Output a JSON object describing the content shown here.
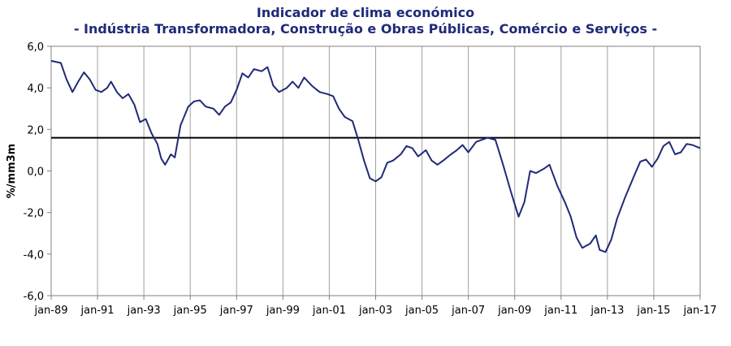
{
  "chart_data": {
    "type": "line",
    "title": "Indicador de clima económico",
    "subtitle": "- Indústria Transformadora, Construção e Obras Públicas, Comércio e Serviços -",
    "xlabel": "",
    "ylabel": "%/mm3m",
    "x_tick_labels": [
      "jan-89",
      "jan-91",
      "jan-93",
      "jan-95",
      "jan-97",
      "jan-99",
      "jan-01",
      "jan-03",
      "jan-05",
      "jan-07",
      "jan-09",
      "jan-11",
      "jan-13",
      "jan-15",
      "jan-17"
    ],
    "y_tick_labels": [
      "6,0",
      "4,0",
      "2,0",
      "0,0",
      "-2,0",
      "-4,0",
      "-6,0"
    ],
    "ylim": [
      -6,
      6
    ],
    "xlim": [
      "1989-01",
      "2017-01"
    ],
    "grid": "vertical",
    "reference_line": 1.6,
    "series_color": "#1f2a78",
    "series": [
      {
        "points": [
          [
            "1989-01",
            5.3
          ],
          [
            "1989-06",
            5.2
          ],
          [
            "1989-09",
            4.4
          ],
          [
            "1989-12",
            3.8
          ],
          [
            "1990-03",
            4.3
          ],
          [
            "1990-06",
            4.75
          ],
          [
            "1990-09",
            4.4
          ],
          [
            "1990-12",
            3.9
          ],
          [
            "1991-03",
            3.8
          ],
          [
            "1991-06",
            4.0
          ],
          [
            "1991-08",
            4.3
          ],
          [
            "1991-11",
            3.8
          ],
          [
            "1992-02",
            3.5
          ],
          [
            "1992-05",
            3.7
          ],
          [
            "1992-08",
            3.2
          ],
          [
            "1992-11",
            2.35
          ],
          [
            "1993-02",
            2.5
          ],
          [
            "1993-05",
            1.8
          ],
          [
            "1993-08",
            1.3
          ],
          [
            "1993-10",
            0.6
          ],
          [
            "1993-12",
            0.3
          ],
          [
            "1994-03",
            0.8
          ],
          [
            "1994-05",
            0.65
          ],
          [
            "1994-08",
            2.2
          ],
          [
            "1994-12",
            3.1
          ],
          [
            "1995-03",
            3.35
          ],
          [
            "1995-06",
            3.4
          ],
          [
            "1995-09",
            3.1
          ],
          [
            "1996-01",
            3.0
          ],
          [
            "1996-04",
            2.7
          ],
          [
            "1996-07",
            3.1
          ],
          [
            "1996-10",
            3.3
          ],
          [
            "1997-01",
            3.9
          ],
          [
            "1997-04",
            4.7
          ],
          [
            "1997-07",
            4.5
          ],
          [
            "1997-10",
            4.9
          ],
          [
            "1998-02",
            4.8
          ],
          [
            "1998-05",
            5.0
          ],
          [
            "1998-08",
            4.1
          ],
          [
            "1998-11",
            3.8
          ],
          [
            "1999-03",
            4.0
          ],
          [
            "1999-06",
            4.3
          ],
          [
            "1999-09",
            4.0
          ],
          [
            "1999-12",
            4.5
          ],
          [
            "2000-04",
            4.1
          ],
          [
            "2000-08",
            3.8
          ],
          [
            "2000-12",
            3.7
          ],
          [
            "2001-03",
            3.6
          ],
          [
            "2001-06",
            3.0
          ],
          [
            "2001-09",
            2.6
          ],
          [
            "2002-01",
            2.4
          ],
          [
            "2002-04",
            1.5
          ],
          [
            "2002-07",
            0.5
          ],
          [
            "2002-10",
            -0.35
          ],
          [
            "2003-01",
            -0.5
          ],
          [
            "2003-04",
            -0.3
          ],
          [
            "2003-07",
            0.4
          ],
          [
            "2003-10",
            0.5
          ],
          [
            "2004-02",
            0.8
          ],
          [
            "2004-05",
            1.2
          ],
          [
            "2004-08",
            1.1
          ],
          [
            "2004-11",
            0.7
          ],
          [
            "2005-03",
            1.0
          ],
          [
            "2005-06",
            0.5
          ],
          [
            "2005-09",
            0.3
          ],
          [
            "2005-12",
            0.5
          ],
          [
            "2006-04",
            0.8
          ],
          [
            "2006-07",
            1.0
          ],
          [
            "2006-10",
            1.25
          ],
          [
            "2007-01",
            0.9
          ],
          [
            "2007-05",
            1.4
          ],
          [
            "2007-08",
            1.5
          ],
          [
            "2007-11",
            1.6
          ],
          [
            "2008-03",
            1.5
          ],
          [
            "2008-07",
            0.3
          ],
          [
            "2008-11",
            -1.0
          ],
          [
            "2009-03",
            -2.2
          ],
          [
            "2009-06",
            -1.5
          ],
          [
            "2009-09",
            0.0
          ],
          [
            "2009-12",
            -0.1
          ],
          [
            "2010-04",
            0.1
          ],
          [
            "2010-07",
            0.3
          ],
          [
            "2010-11",
            -0.7
          ],
          [
            "2011-03",
            -1.5
          ],
          [
            "2011-06",
            -2.2
          ],
          [
            "2011-09",
            -3.2
          ],
          [
            "2011-12",
            -3.7
          ],
          [
            "2012-04",
            -3.5
          ],
          [
            "2012-07",
            -3.1
          ],
          [
            "2012-09",
            -3.8
          ],
          [
            "2012-12",
            -3.9
          ],
          [
            "2013-03",
            -3.3
          ],
          [
            "2013-06",
            -2.3
          ],
          [
            "2013-10",
            -1.3
          ],
          [
            "2014-03",
            -0.2
          ],
          [
            "2014-06",
            0.45
          ],
          [
            "2014-09",
            0.55
          ],
          [
            "2014-12",
            0.2
          ],
          [
            "2015-03",
            0.6
          ],
          [
            "2015-06",
            1.2
          ],
          [
            "2015-09",
            1.4
          ],
          [
            "2015-12",
            0.8
          ],
          [
            "2016-03",
            0.9
          ],
          [
            "2016-06",
            1.3
          ],
          [
            "2016-09",
            1.25
          ],
          [
            "2017-01",
            1.1
          ]
        ]
      }
    ]
  }
}
